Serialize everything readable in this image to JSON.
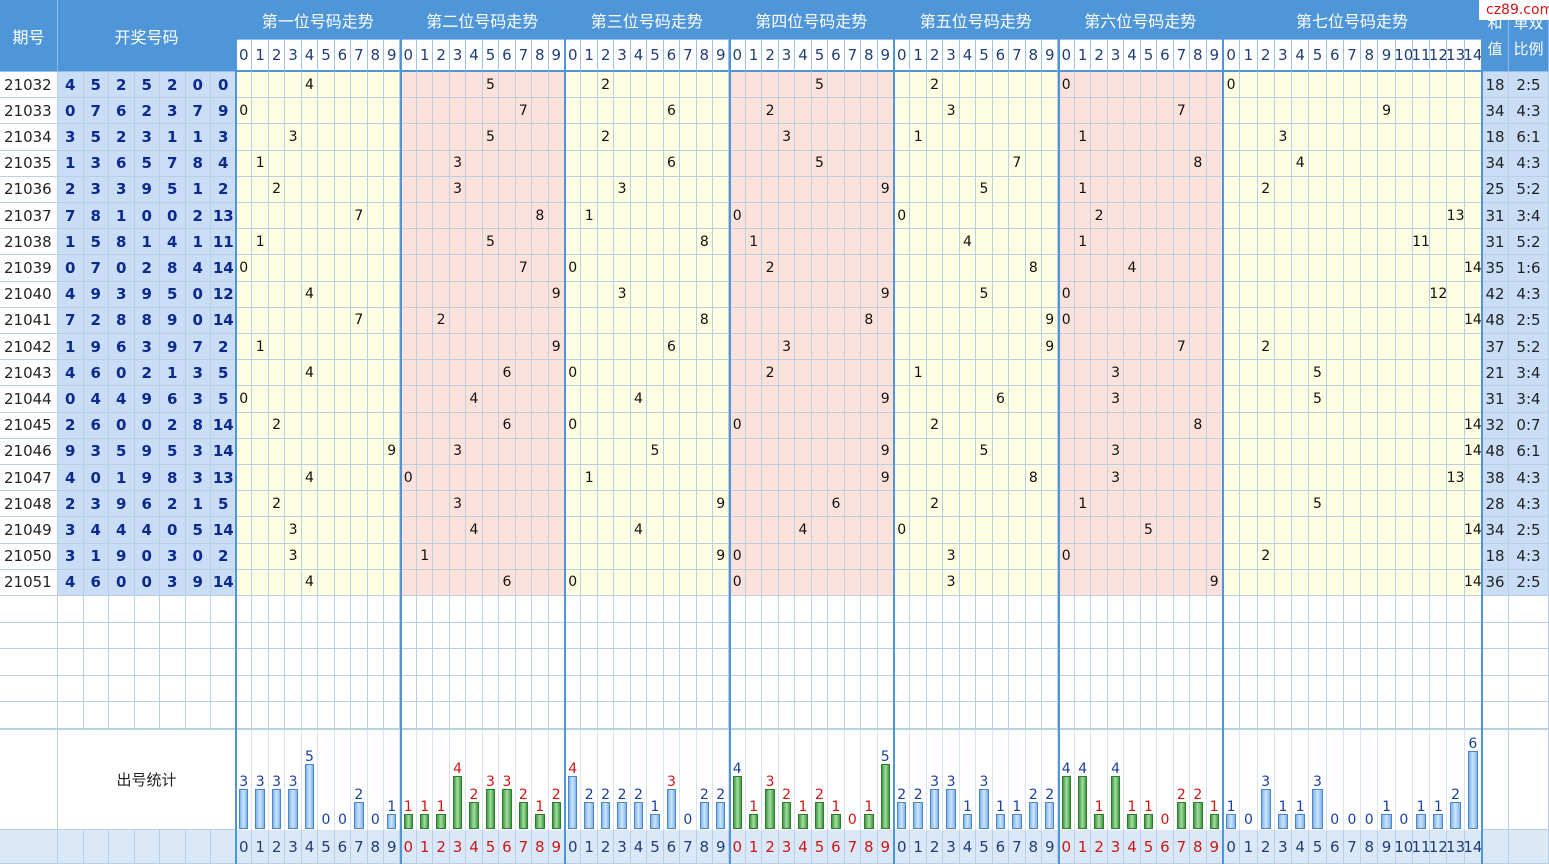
{
  "logo_text": "cz89.com",
  "headers": {
    "issue": "期号",
    "draw": "开奖号码",
    "sum": "和值",
    "ratio": "单双比例",
    "stat_label": "出号统计"
  },
  "positions": [
    {
      "title": "第一位号码走势",
      "digits": [
        "0",
        "1",
        "2",
        "3",
        "4",
        "5",
        "6",
        "7",
        "8",
        "9"
      ]
    },
    {
      "title": "第二位号码走势",
      "digits": [
        "0",
        "1",
        "2",
        "3",
        "4",
        "5",
        "6",
        "7",
        "8",
        "9"
      ]
    },
    {
      "title": "第三位号码走势",
      "digits": [
        "0",
        "1",
        "2",
        "3",
        "4",
        "5",
        "6",
        "7",
        "8",
        "9"
      ]
    },
    {
      "title": "第四位号码走势",
      "digits": [
        "0",
        "1",
        "2",
        "3",
        "4",
        "5",
        "6",
        "7",
        "8",
        "9"
      ]
    },
    {
      "title": "第五位号码走势",
      "digits": [
        "0",
        "1",
        "2",
        "3",
        "4",
        "5",
        "6",
        "7",
        "8",
        "9"
      ]
    },
    {
      "title": "第六位号码走势",
      "digits": [
        "0",
        "1",
        "2",
        "3",
        "4",
        "5",
        "6",
        "7",
        "8",
        "9"
      ]
    },
    {
      "title": "第七位号码走势",
      "digits": [
        "0",
        "1",
        "2",
        "3",
        "4",
        "5",
        "6",
        "7",
        "8",
        "9",
        "10",
        "11",
        "12",
        "13",
        "14"
      ]
    }
  ],
  "rows": [
    {
      "issue": "21032",
      "nums": [
        "4",
        "5",
        "2",
        "5",
        "2",
        "0",
        "0"
      ],
      "sum": "18",
      "ratio": "2:5"
    },
    {
      "issue": "21033",
      "nums": [
        "0",
        "7",
        "6",
        "2",
        "3",
        "7",
        "9"
      ],
      "sum": "34",
      "ratio": "4:3"
    },
    {
      "issue": "21034",
      "nums": [
        "3",
        "5",
        "2",
        "3",
        "1",
        "1",
        "3"
      ],
      "sum": "18",
      "ratio": "6:1"
    },
    {
      "issue": "21035",
      "nums": [
        "1",
        "3",
        "6",
        "5",
        "7",
        "8",
        "4"
      ],
      "sum": "34",
      "ratio": "4:3"
    },
    {
      "issue": "21036",
      "nums": [
        "2",
        "3",
        "3",
        "9",
        "5",
        "1",
        "2"
      ],
      "sum": "25",
      "ratio": "5:2"
    },
    {
      "issue": "21037",
      "nums": [
        "7",
        "8",
        "1",
        "0",
        "0",
        "2",
        "13"
      ],
      "sum": "31",
      "ratio": "3:4"
    },
    {
      "issue": "21038",
      "nums": [
        "1",
        "5",
        "8",
        "1",
        "4",
        "1",
        "11"
      ],
      "sum": "31",
      "ratio": "5:2"
    },
    {
      "issue": "21039",
      "nums": [
        "0",
        "7",
        "0",
        "2",
        "8",
        "4",
        "14"
      ],
      "sum": "35",
      "ratio": "1:6"
    },
    {
      "issue": "21040",
      "nums": [
        "4",
        "9",
        "3",
        "9",
        "5",
        "0",
        "12"
      ],
      "sum": "42",
      "ratio": "4:3"
    },
    {
      "issue": "21041",
      "nums": [
        "7",
        "2",
        "8",
        "8",
        "9",
        "0",
        "14"
      ],
      "sum": "48",
      "ratio": "2:5"
    },
    {
      "issue": "21042",
      "nums": [
        "1",
        "9",
        "6",
        "3",
        "9",
        "7",
        "2"
      ],
      "sum": "37",
      "ratio": "5:2"
    },
    {
      "issue": "21043",
      "nums": [
        "4",
        "6",
        "0",
        "2",
        "1",
        "3",
        "5"
      ],
      "sum": "21",
      "ratio": "3:4"
    },
    {
      "issue": "21044",
      "nums": [
        "0",
        "4",
        "4",
        "9",
        "6",
        "3",
        "5"
      ],
      "sum": "31",
      "ratio": "3:4"
    },
    {
      "issue": "21045",
      "nums": [
        "2",
        "6",
        "0",
        "0",
        "2",
        "8",
        "14"
      ],
      "sum": "32",
      "ratio": "0:7"
    },
    {
      "issue": "21046",
      "nums": [
        "9",
        "3",
        "5",
        "9",
        "5",
        "3",
        "14"
      ],
      "sum": "48",
      "ratio": "6:1"
    },
    {
      "issue": "21047",
      "nums": [
        "4",
        "0",
        "1",
        "9",
        "8",
        "3",
        "13"
      ],
      "sum": "38",
      "ratio": "4:3"
    },
    {
      "issue": "21048",
      "nums": [
        "2",
        "3",
        "9",
        "6",
        "2",
        "1",
        "5"
      ],
      "sum": "28",
      "ratio": "4:3"
    },
    {
      "issue": "21049",
      "nums": [
        "3",
        "4",
        "4",
        "4",
        "0",
        "5",
        "14"
      ],
      "sum": "34",
      "ratio": "2:5"
    },
    {
      "issue": "21050",
      "nums": [
        "3",
        "1",
        "9",
        "0",
        "3",
        "0",
        "2"
      ],
      "sum": "18",
      "ratio": "4:3"
    },
    {
      "issue": "21051",
      "nums": [
        "4",
        "6",
        "0",
        "0",
        "3",
        "9",
        "14"
      ],
      "sum": "36",
      "ratio": "2:5"
    }
  ],
  "stats": [
    [
      "3",
      "3",
      "3",
      "3",
      "5",
      "0",
      "0",
      "2",
      "0",
      "1"
    ],
    [
      "1",
      "1",
      "1",
      "4",
      "2",
      "3",
      "3",
      "2",
      "1",
      "2"
    ],
    [
      "4",
      "2",
      "2",
      "2",
      "2",
      "1",
      "3",
      "0",
      "2",
      "2"
    ],
    [
      "4",
      "1",
      "3",
      "2",
      "1",
      "2",
      "1",
      "0",
      "1",
      "5"
    ],
    [
      "2",
      "2",
      "3",
      "3",
      "1",
      "3",
      "1",
      "1",
      "2",
      "2"
    ],
    [
      "4",
      "4",
      "1",
      "4",
      "1",
      "1",
      "0",
      "2",
      "2",
      "1"
    ],
    [
      "1",
      "0",
      "3",
      "1",
      "1",
      "3",
      "0",
      "0",
      "0",
      "1",
      "0",
      "1",
      "1",
      "2",
      "6"
    ]
  ],
  "stat_colors": {
    "blue_bar": "#7fb5ec",
    "green_bar": "#3c9d3c",
    "blue_text": "#1a3fa3",
    "red_text": "#d01515"
  }
}
